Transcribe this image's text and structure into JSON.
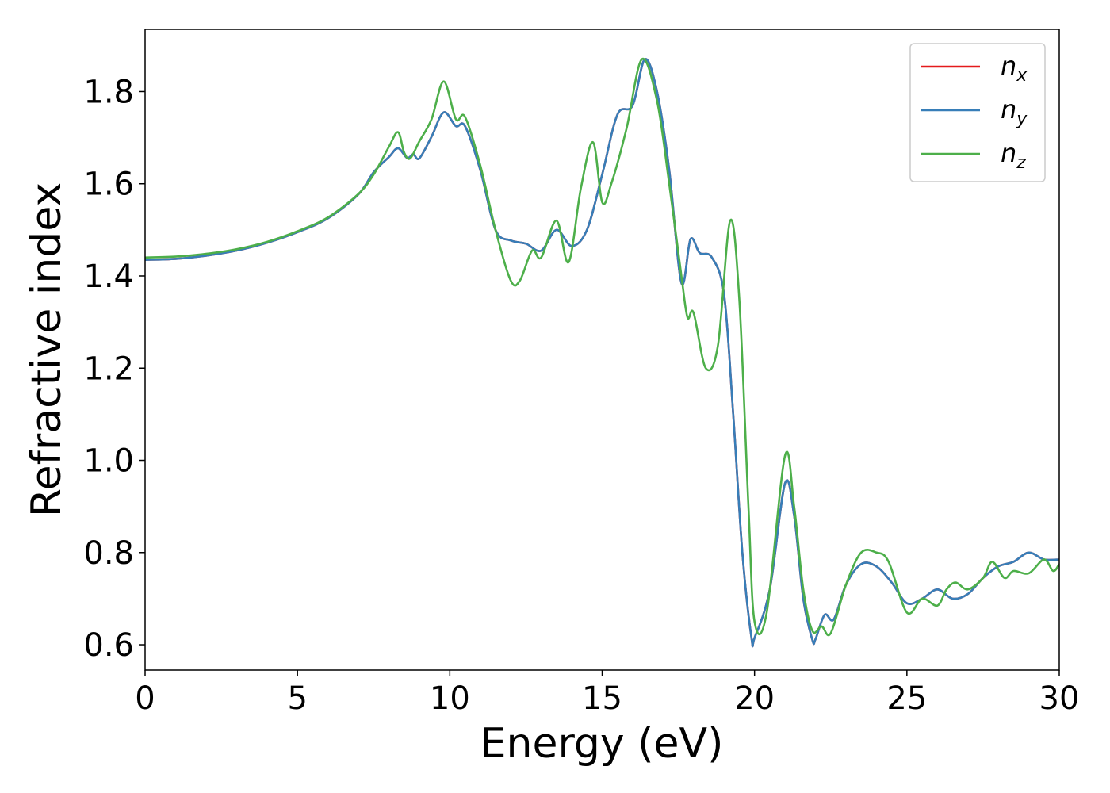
{
  "chart_data": {
    "type": "line",
    "xlabel": "Energy (eV)",
    "ylabel": "Refractive index",
    "xlim": [
      0,
      30
    ],
    "ylim": [
      0.545,
      1.935
    ],
    "xticks": [
      0,
      5,
      10,
      15,
      20,
      25,
      30
    ],
    "xtick_labels": [
      "0",
      "5",
      "10",
      "15",
      "20",
      "25",
      "30"
    ],
    "yticks": [
      0.6,
      0.8,
      1.0,
      1.2,
      1.4,
      1.6,
      1.8
    ],
    "ytick_labels": [
      "0.6",
      "0.8",
      "1.0",
      "1.2",
      "1.4",
      "1.6",
      "1.8"
    ],
    "grid": false,
    "legend_position": "top-right",
    "series": [
      {
        "name": "n",
        "sub": "x",
        "color": "#e41a1c",
        "x": [
          0,
          1,
          2,
          3,
          4,
          5,
          6,
          7,
          7.5,
          8,
          8.3,
          8.6,
          8.8,
          9,
          9.4,
          9.8,
          10.2,
          10.5,
          11,
          11.5,
          12,
          12.5,
          13,
          13.5,
          14,
          14.5,
          15,
          15.5,
          16,
          16.4,
          16.8,
          17.2,
          17.6,
          17.9,
          18.2,
          18.6,
          19,
          19.3,
          19.6,
          19.9,
          20,
          20.5,
          21,
          21.3,
          21.6,
          21.9,
          22,
          22.3,
          22.6,
          23,
          23.5,
          24,
          24.5,
          25,
          25.5,
          26,
          26.5,
          27,
          27.5,
          28,
          28.5,
          29,
          29.5,
          30
        ],
        "y": [
          1.435,
          1.437,
          1.444,
          1.455,
          1.472,
          1.495,
          1.525,
          1.577,
          1.625,
          1.658,
          1.677,
          1.656,
          1.664,
          1.655,
          1.702,
          1.755,
          1.725,
          1.725,
          1.63,
          1.5,
          1.477,
          1.47,
          1.455,
          1.5,
          1.465,
          1.5,
          1.62,
          1.75,
          1.77,
          1.87,
          1.8,
          1.63,
          1.385,
          1.48,
          1.45,
          1.44,
          1.36,
          1.1,
          0.8,
          0.615,
          0.615,
          0.72,
          0.95,
          0.88,
          0.7,
          0.61,
          0.612,
          0.665,
          0.655,
          0.73,
          0.775,
          0.77,
          0.735,
          0.69,
          0.7,
          0.72,
          0.7,
          0.71,
          0.745,
          0.77,
          0.78,
          0.8,
          0.785,
          0.785
        ]
      },
      {
        "name": "n",
        "sub": "y",
        "color": "#377eb8",
        "x": [
          0,
          1,
          2,
          3,
          4,
          5,
          6,
          7,
          7.5,
          8,
          8.3,
          8.6,
          8.8,
          9,
          9.4,
          9.8,
          10.2,
          10.5,
          11,
          11.5,
          12,
          12.5,
          13,
          13.5,
          14,
          14.5,
          15,
          15.5,
          16,
          16.4,
          16.8,
          17.2,
          17.6,
          17.9,
          18.2,
          18.6,
          19,
          19.3,
          19.6,
          19.9,
          20,
          20.5,
          21,
          21.3,
          21.6,
          21.9,
          22,
          22.3,
          22.6,
          23,
          23.5,
          24,
          24.5,
          25,
          25.5,
          26,
          26.5,
          27,
          27.5,
          28,
          28.5,
          29,
          29.5,
          30
        ],
        "y": [
          1.435,
          1.437,
          1.444,
          1.455,
          1.472,
          1.495,
          1.525,
          1.577,
          1.625,
          1.658,
          1.677,
          1.656,
          1.664,
          1.655,
          1.702,
          1.755,
          1.725,
          1.725,
          1.63,
          1.5,
          1.477,
          1.47,
          1.455,
          1.5,
          1.465,
          1.5,
          1.62,
          1.75,
          1.77,
          1.87,
          1.8,
          1.63,
          1.385,
          1.48,
          1.45,
          1.44,
          1.36,
          1.1,
          0.8,
          0.615,
          0.615,
          0.72,
          0.95,
          0.88,
          0.7,
          0.61,
          0.612,
          0.665,
          0.655,
          0.73,
          0.775,
          0.77,
          0.735,
          0.69,
          0.7,
          0.72,
          0.7,
          0.71,
          0.745,
          0.77,
          0.78,
          0.8,
          0.785,
          0.785
        ]
      },
      {
        "name": "n",
        "sub": "z",
        "color": "#4daf4a",
        "x": [
          0,
          1,
          2,
          3,
          4,
          5,
          6,
          7,
          7.5,
          8,
          8.3,
          8.5,
          8.7,
          9,
          9.4,
          9.8,
          10.2,
          10.5,
          11,
          11.5,
          12,
          12.3,
          12.7,
          13,
          13.5,
          13.9,
          14.3,
          14.7,
          15,
          15.3,
          15.8,
          16.3,
          16.8,
          17.2,
          17.6,
          17.8,
          18,
          18.4,
          18.8,
          19.2,
          19.5,
          19.8,
          20,
          20.4,
          21,
          21.3,
          21.6,
          21.9,
          22.2,
          22.5,
          23,
          23.5,
          24,
          24.4,
          25,
          25.5,
          26,
          26.3,
          26.6,
          27,
          27.5,
          27.8,
          28.2,
          28.5,
          29,
          29.5,
          29.8,
          30
        ],
        "y": [
          1.44,
          1.442,
          1.448,
          1.458,
          1.474,
          1.497,
          1.527,
          1.578,
          1.62,
          1.68,
          1.712,
          1.668,
          1.655,
          1.692,
          1.74,
          1.822,
          1.74,
          1.745,
          1.64,
          1.5,
          1.39,
          1.39,
          1.455,
          1.44,
          1.52,
          1.43,
          1.59,
          1.69,
          1.56,
          1.6,
          1.72,
          1.87,
          1.78,
          1.6,
          1.4,
          1.31,
          1.32,
          1.2,
          1.25,
          1.52,
          1.35,
          0.9,
          0.65,
          0.67,
          1.01,
          0.9,
          0.72,
          0.63,
          0.64,
          0.625,
          0.73,
          0.8,
          0.8,
          0.78,
          0.67,
          0.7,
          0.685,
          0.72,
          0.735,
          0.72,
          0.745,
          0.78,
          0.745,
          0.76,
          0.755,
          0.785,
          0.76,
          0.775
        ]
      }
    ]
  }
}
